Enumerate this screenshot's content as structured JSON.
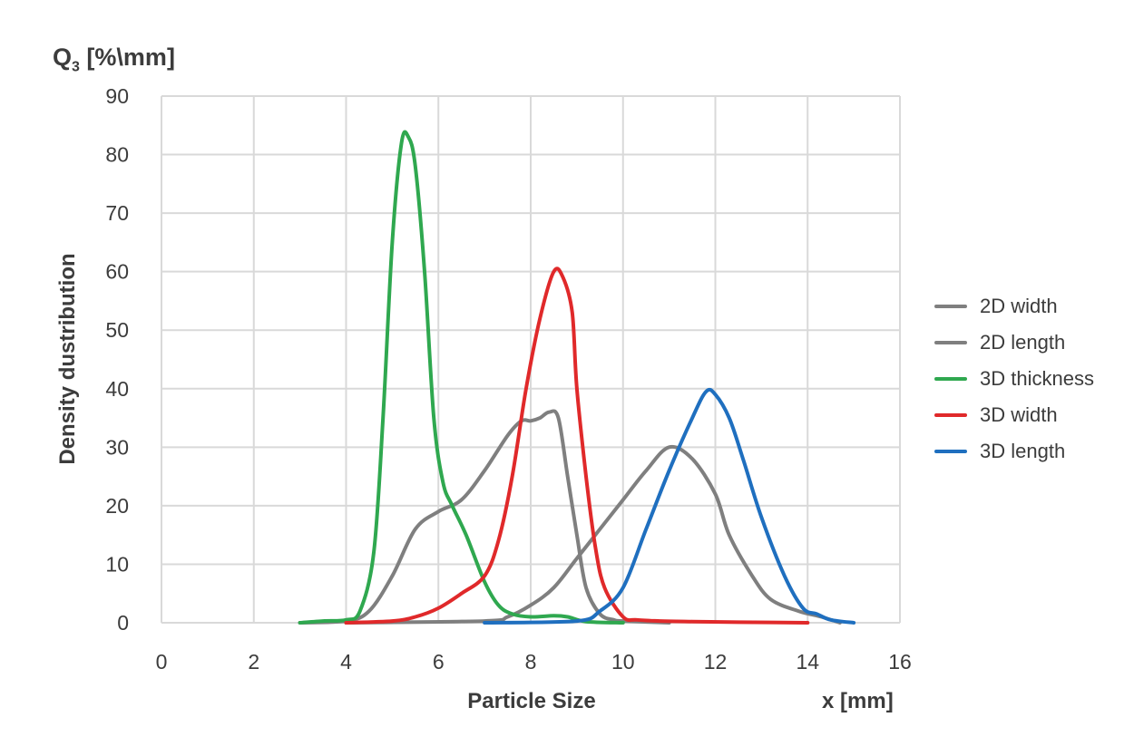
{
  "chart_data": {
    "type": "line",
    "y_unit_label": "Q",
    "y_unit_sub": "3",
    "y_unit_rest": " [%\\mm]",
    "ylabel": "Density dustribution",
    "xlabel": "Particle Size",
    "x_unit": "x [mm]",
    "xlim": [
      0,
      16
    ],
    "ylim": [
      0,
      90
    ],
    "x_ticks": [
      0,
      2,
      4,
      6,
      8,
      10,
      12,
      14,
      16
    ],
    "y_ticks": [
      0,
      10,
      20,
      30,
      40,
      50,
      60,
      70,
      80,
      90
    ],
    "grid": true,
    "legend_position": "right",
    "series": [
      {
        "name": "2D width",
        "color": "#7f7f7f",
        "x": [
          3.0,
          4.0,
          4.5,
          5.0,
          5.5,
          6.0,
          6.5,
          7.0,
          7.5,
          7.8,
          8.0,
          8.2,
          8.4,
          8.6,
          8.8,
          9.0,
          9.2,
          9.5,
          9.8,
          10.0,
          11.0
        ],
        "y": [
          0,
          0.3,
          2,
          8,
          16,
          19,
          21,
          26,
          32,
          34.5,
          34.5,
          35,
          36,
          35,
          25,
          15,
          6,
          1.5,
          0.5,
          0.3,
          0
        ]
      },
      {
        "name": "2D length",
        "color": "#7f7f7f",
        "x": [
          4.0,
          7.0,
          7.5,
          8.0,
          8.5,
          9.0,
          9.5,
          10.0,
          10.5,
          11.0,
          11.5,
          12.0,
          12.3,
          12.8,
          13.2,
          13.8,
          14.3,
          14.7
        ],
        "y": [
          0,
          0.3,
          1,
          3,
          6,
          11,
          16,
          21,
          26,
          30,
          28,
          22,
          15,
          8,
          4,
          2,
          1,
          0
        ]
      },
      {
        "name": "3D thickness",
        "color": "#2fa84f",
        "x": [
          3.0,
          3.5,
          4.0,
          4.3,
          4.6,
          4.8,
          5.0,
          5.2,
          5.35,
          5.5,
          5.7,
          5.9,
          6.1,
          6.3,
          6.6,
          7.0,
          7.3,
          7.6,
          8.0,
          8.5,
          8.8,
          9.2,
          10.0
        ],
        "y": [
          0,
          0.3,
          0.5,
          2,
          12,
          35,
          65,
          82,
          83,
          78,
          60,
          35,
          24,
          20,
          15,
          7,
          3,
          1.5,
          1,
          1.2,
          1,
          0.2,
          0
        ]
      },
      {
        "name": "3D width",
        "color": "#e0292a",
        "x": [
          4.0,
          5.0,
          5.5,
          6.0,
          6.5,
          7.0,
          7.3,
          7.6,
          7.9,
          8.2,
          8.5,
          8.7,
          8.9,
          9.0,
          9.2,
          9.4,
          9.6,
          10.0,
          10.3,
          10.8,
          11.5,
          12.5,
          14.0
        ],
        "y": [
          0,
          0.3,
          1,
          2.5,
          5,
          8,
          14,
          25,
          40,
          52,
          60,
          59,
          53,
          40,
          25,
          13,
          6,
          1,
          0.5,
          0.3,
          0.2,
          0.1,
          0
        ]
      },
      {
        "name": "3D length",
        "color": "#1f6fbf",
        "x": [
          7.0,
          9.0,
          9.5,
          10.0,
          10.5,
          11.0,
          11.5,
          11.8,
          12.0,
          12.3,
          12.6,
          13.0,
          13.5,
          13.9,
          14.2,
          14.5,
          15.0
        ],
        "y": [
          0,
          0.3,
          2,
          6,
          16,
          26,
          35,
          39.5,
          39,
          35,
          28,
          18,
          8,
          2.5,
          1.5,
          0.5,
          0
        ]
      }
    ]
  }
}
